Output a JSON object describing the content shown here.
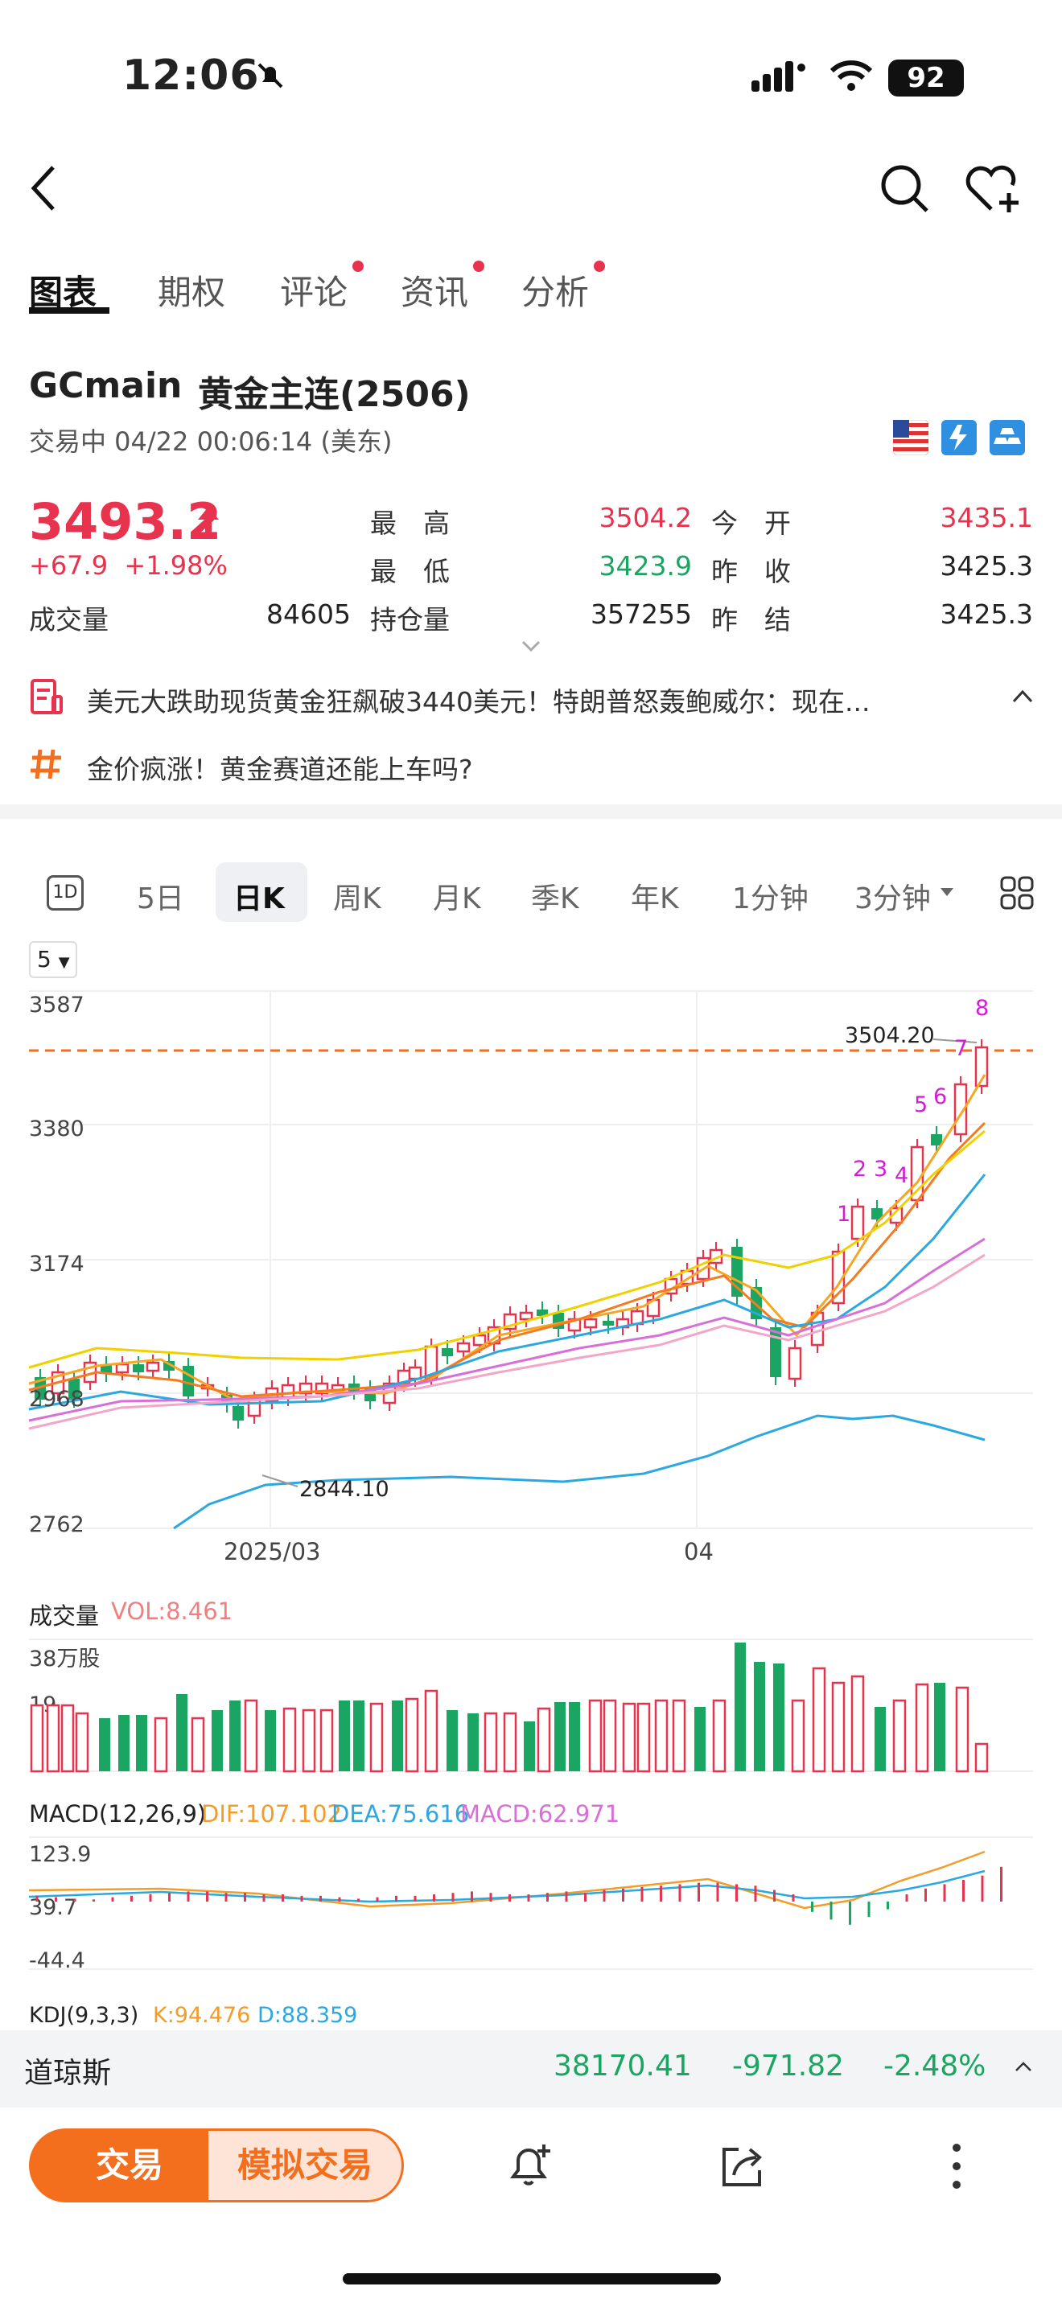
{
  "status": {
    "time": "12:06",
    "battery": "92"
  },
  "tabs": [
    {
      "label": "图表"
    },
    {
      "label": "期权"
    },
    {
      "label": "评论"
    },
    {
      "label": "资讯"
    },
    {
      "label": "分析"
    }
  ],
  "instrument": {
    "code": "GCmain",
    "name": "黄金主连(2506)",
    "status": "交易中 04/22 00:06:14 (美东)"
  },
  "quote": {
    "price": "3493.2",
    "change": "+67.9",
    "change_pct": "+1.98%",
    "labels": {
      "high": "最　高",
      "low": "最　低",
      "open": "今　开",
      "prev_close": "昨　收",
      "volume": "成交量",
      "open_interest": "持仓量",
      "prev_settle": "昨　结"
    },
    "high": "3504.2",
    "low": "3423.9",
    "open": "3435.1",
    "prev_close": "3425.3",
    "volume": "84605",
    "open_interest": "357255",
    "prev_settle": "3425.3"
  },
  "news": [
    {
      "text": "美元大跌助现货黄金狂飙破3440美元！特朗普怒轰鲍威尔：现在..."
    },
    {
      "text": "金价疯涨！黄金赛道还能上车吗?"
    }
  ],
  "periods": [
    {
      "label": "1D"
    },
    {
      "label": "5日"
    },
    {
      "label": "日K"
    },
    {
      "label": "周K"
    },
    {
      "label": "月K"
    },
    {
      "label": "季K"
    },
    {
      "label": "年K"
    },
    {
      "label": "1分钟"
    },
    {
      "label": "3分钟"
    }
  ],
  "ma_selector": "5",
  "chart": {
    "y_ticks": [
      "3587",
      "3380",
      "3174",
      "2968",
      "2762"
    ],
    "x_ticks": [
      "2025/03",
      "04"
    ],
    "high_label": "3504.20",
    "low_label": "2844.10",
    "td_counts": [
      "1",
      "2",
      "3",
      "4",
      "5",
      "6",
      "7",
      "8"
    ]
  },
  "volume": {
    "title": "成交量",
    "vol_label": "VOL:8.461",
    "unit_label": "38万股",
    "mid_label": "19"
  },
  "macd": {
    "title": "MACD(12,26,9)",
    "dif": "DIF:107.102",
    "dea": "DEA:75.616",
    "macd": "MACD:62.971",
    "ticks": [
      "123.9",
      "39.7",
      "-44.4"
    ]
  },
  "kdj": {
    "title": "KDJ(9,3,3)",
    "k": "K:94.476",
    "d": "D:88.359"
  },
  "ticker": {
    "name": "道琼斯",
    "value": "38170.41",
    "change": "-971.82",
    "pct": "-2.48%"
  },
  "actions": {
    "trade": "交易",
    "sim_trade": "模拟交易"
  },
  "colors": {
    "up": "#e8334f",
    "down": "#1aa563",
    "accent": "#f36f1e"
  }
}
